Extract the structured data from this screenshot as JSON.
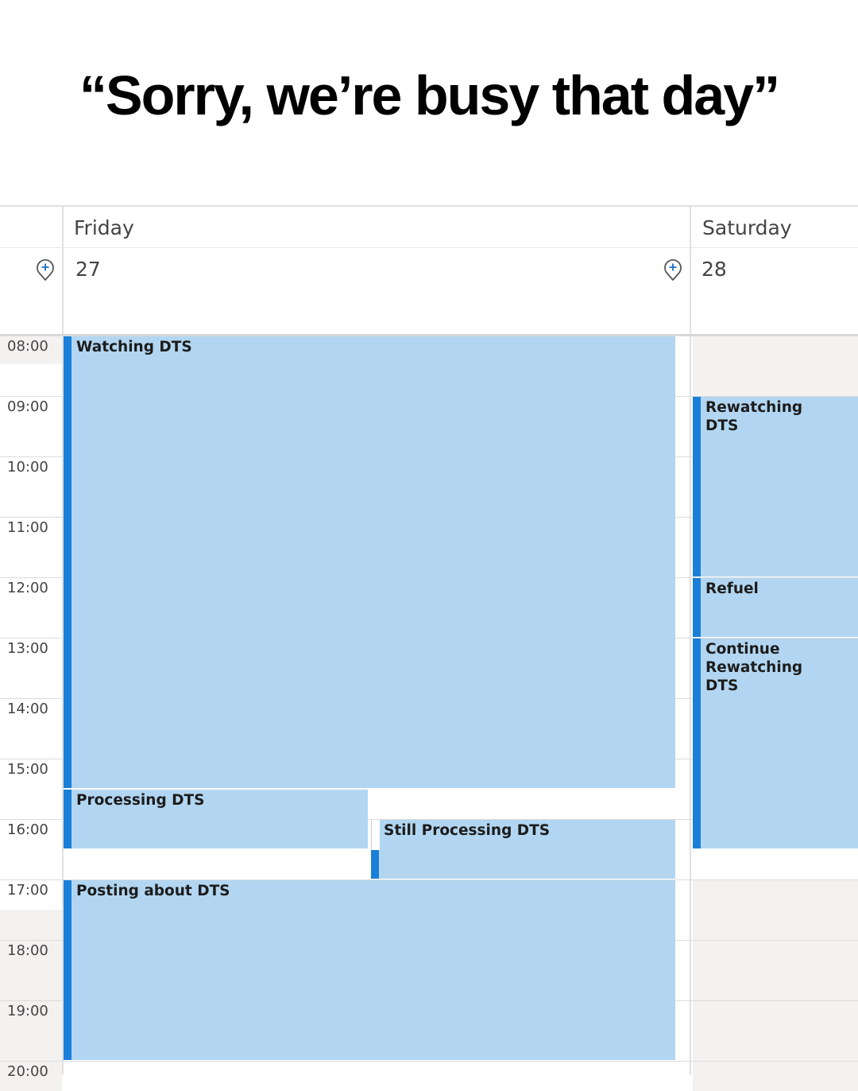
{
  "headline": "“Sorry, we’re busy that day”",
  "days": [
    {
      "name": "Friday",
      "date": "27"
    },
    {
      "name": "Saturday",
      "date": "28"
    }
  ],
  "hours": [
    "08:00",
    "09:00",
    "10:00",
    "11:00",
    "12:00",
    "13:00",
    "14:00",
    "15:00",
    "16:00",
    "17:00",
    "18:00",
    "19:00",
    "20:00"
  ],
  "icons": {
    "add_event": "add-location-pin-icon"
  },
  "colors": {
    "event_fill": "#b2d6f1",
    "event_bar": "#1a7fd9",
    "off_hours": "#f3f2f1"
  },
  "events": [
    {
      "day": 0,
      "title": "Watching DTS",
      "start": "08:00",
      "end": "15:30",
      "column": "full"
    },
    {
      "day": 0,
      "title": "Processing DTS",
      "start": "15:30",
      "end": "16:30",
      "column": "left"
    },
    {
      "day": 0,
      "title": "Still Processing DTS",
      "start": "16:00",
      "end": "17:00",
      "column": "right"
    },
    {
      "day": 0,
      "title": "Posting about DTS",
      "start": "17:00",
      "end": "20:00",
      "column": "full"
    },
    {
      "day": 1,
      "title": "Rewatching DTS",
      "start": "09:00",
      "end": "12:00",
      "column": "full"
    },
    {
      "day": 1,
      "title": "Refuel",
      "start": "12:00",
      "end": "13:00",
      "column": "full"
    },
    {
      "day": 1,
      "title": "Continue Rewatching DTS",
      "start": "13:00",
      "end": "16:30",
      "column": "full"
    }
  ]
}
